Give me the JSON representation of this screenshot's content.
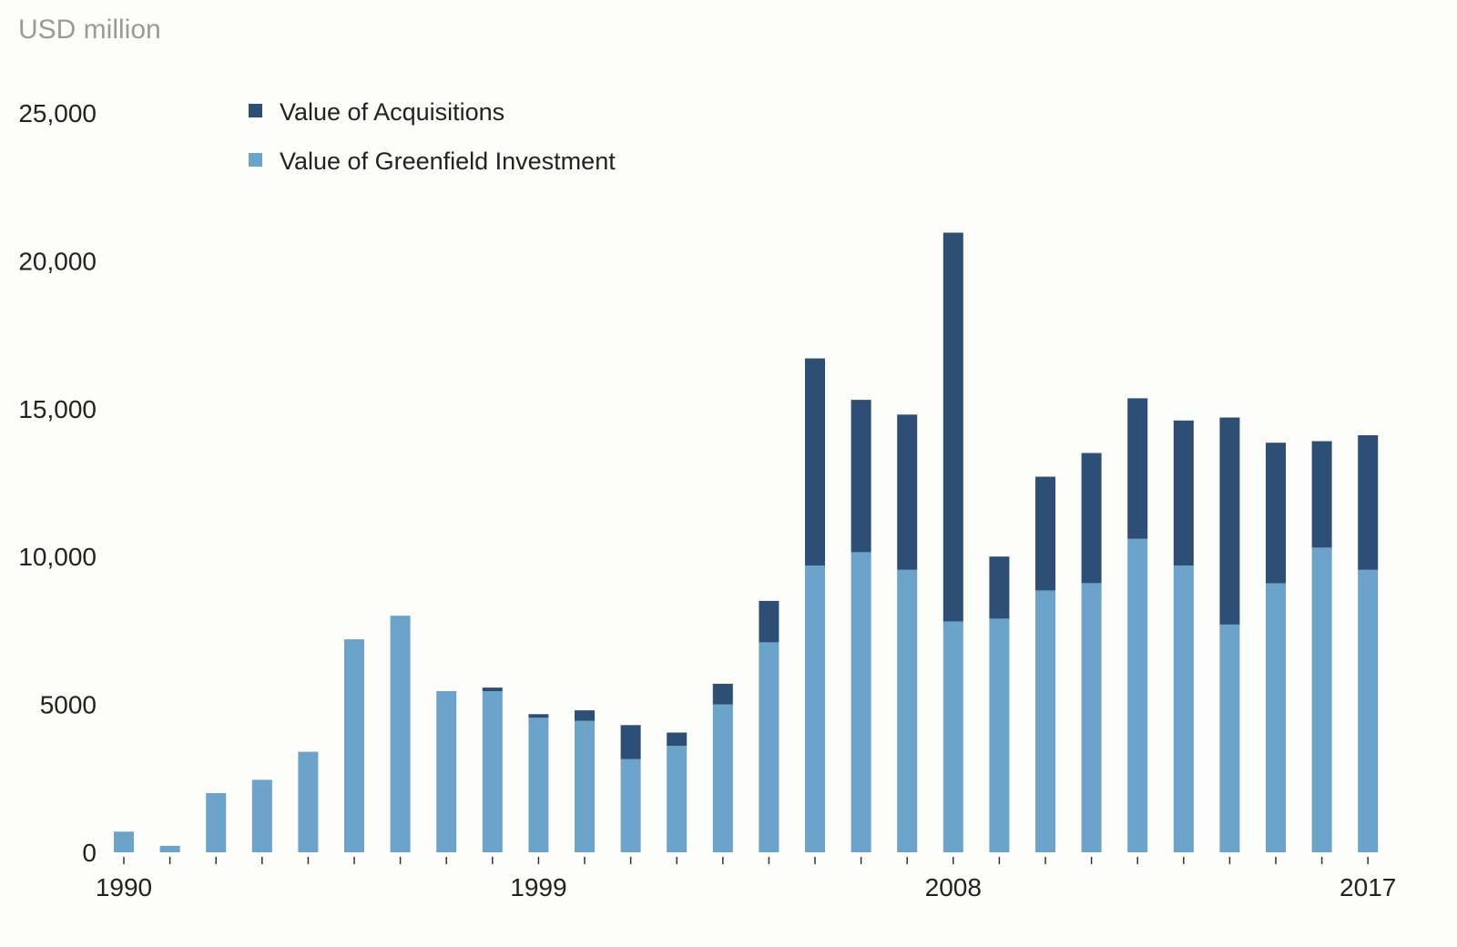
{
  "chart_data": {
    "type": "bar",
    "stacked": true,
    "unit_label": "USD million",
    "title": "",
    "xlabel": "",
    "ylabel": "",
    "ylim": [
      0,
      25000
    ],
    "y_ticks": [
      {
        "value": 0,
        "label": "0"
      },
      {
        "value": 5000,
        "label": "5000"
      },
      {
        "value": 10000,
        "label": "10,000"
      },
      {
        "value": 15000,
        "label": "15,000"
      },
      {
        "value": 20000,
        "label": "20,000"
      },
      {
        "value": 25000,
        "label": "25,000"
      }
    ],
    "x_tick_labels": [
      {
        "category": "1990",
        "label": "1990"
      },
      {
        "category": "1999",
        "label": "1999"
      },
      {
        "category": "2008",
        "label": "2008"
      },
      {
        "category": "2017",
        "label": "2017"
      }
    ],
    "grid": false,
    "legend_position": "top-left",
    "categories": [
      "1990",
      "1991",
      "1992",
      "1993",
      "1994",
      "1995",
      "1996",
      "1997",
      "1998",
      "1999",
      "2000",
      "2001",
      "2002",
      "2003",
      "2004",
      "2005",
      "2006",
      "2007",
      "2008",
      "2009",
      "2010",
      "2011",
      "2012",
      "2013",
      "2014",
      "2015",
      "2016",
      "2017"
    ],
    "series": [
      {
        "name": "Value of Greenfield Investment",
        "color": "#6ca3cb",
        "values": [
          700,
          220,
          2000,
          2450,
          3400,
          7200,
          8000,
          5450,
          5450,
          4550,
          4450,
          3150,
          3600,
          5000,
          7100,
          9700,
          10150,
          9550,
          7800,
          7900,
          8850,
          9100,
          10600,
          9700,
          7700,
          9100,
          10300,
          9550
        ]
      },
      {
        "name": "Value of Acquisitions",
        "color": "#2d4f76",
        "values": [
          0,
          0,
          0,
          0,
          0,
          0,
          0,
          0,
          120,
          120,
          350,
          1150,
          450,
          700,
          1400,
          7000,
          5150,
          5250,
          13150,
          2100,
          3850,
          4400,
          4750,
          4900,
          7000,
          4750,
          3600,
          4550
        ]
      }
    ],
    "legend": [
      {
        "label": "Value of Acquisitions",
        "color": "#2d4f76"
      },
      {
        "label": "Value of Greenfield Investment",
        "color": "#6ca3cb"
      }
    ]
  }
}
